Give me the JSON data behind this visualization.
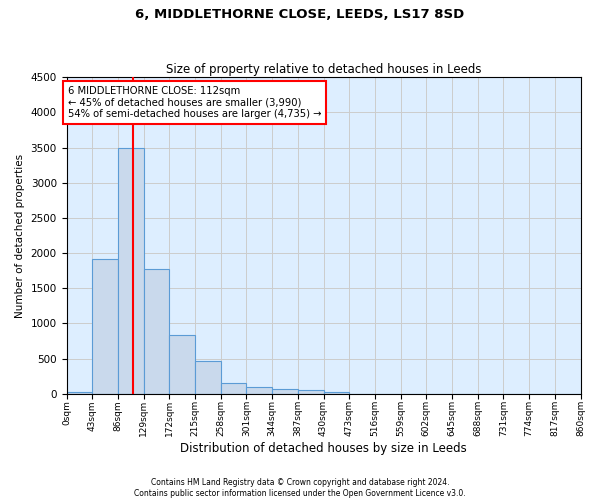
{
  "title": "6, MIDDLETHORNE CLOSE, LEEDS, LS17 8SD",
  "subtitle": "Size of property relative to detached houses in Leeds",
  "xlabel": "Distribution of detached houses by size in Leeds",
  "ylabel": "Number of detached properties",
  "bin_edges": [
    0,
    43,
    86,
    129,
    172,
    215,
    258,
    301,
    344,
    387,
    430,
    473,
    516,
    559,
    602,
    645,
    688,
    731,
    774,
    817,
    860
  ],
  "bin_labels": [
    "0sqm",
    "43sqm",
    "86sqm",
    "129sqm",
    "172sqm",
    "215sqm",
    "258sqm",
    "301sqm",
    "344sqm",
    "387sqm",
    "430sqm",
    "473sqm",
    "516sqm",
    "559sqm",
    "602sqm",
    "645sqm",
    "688sqm",
    "731sqm",
    "774sqm",
    "817sqm",
    "860sqm"
  ],
  "bar_heights": [
    30,
    1920,
    3500,
    1780,
    840,
    460,
    160,
    100,
    65,
    55,
    30,
    0,
    0,
    0,
    0,
    0,
    0,
    0,
    0,
    0
  ],
  "bar_color": "#c9d9ec",
  "bar_edge_color": "#5b9bd5",
  "grid_color": "#cccccc",
  "bg_color": "#ddeeff",
  "property_line_x": 112,
  "property_line_color": "red",
  "annotation_text": "6 MIDDLETHORNE CLOSE: 112sqm\n← 45% of detached houses are smaller (3,990)\n54% of semi-detached houses are larger (4,735) →",
  "annotation_box_color": "red",
  "ylim": [
    0,
    4500
  ],
  "yticks": [
    0,
    500,
    1000,
    1500,
    2000,
    2500,
    3000,
    3500,
    4000,
    4500
  ],
  "footer_line1": "Contains HM Land Registry data © Crown copyright and database right 2024.",
  "footer_line2": "Contains public sector information licensed under the Open Government Licence v3.0."
}
